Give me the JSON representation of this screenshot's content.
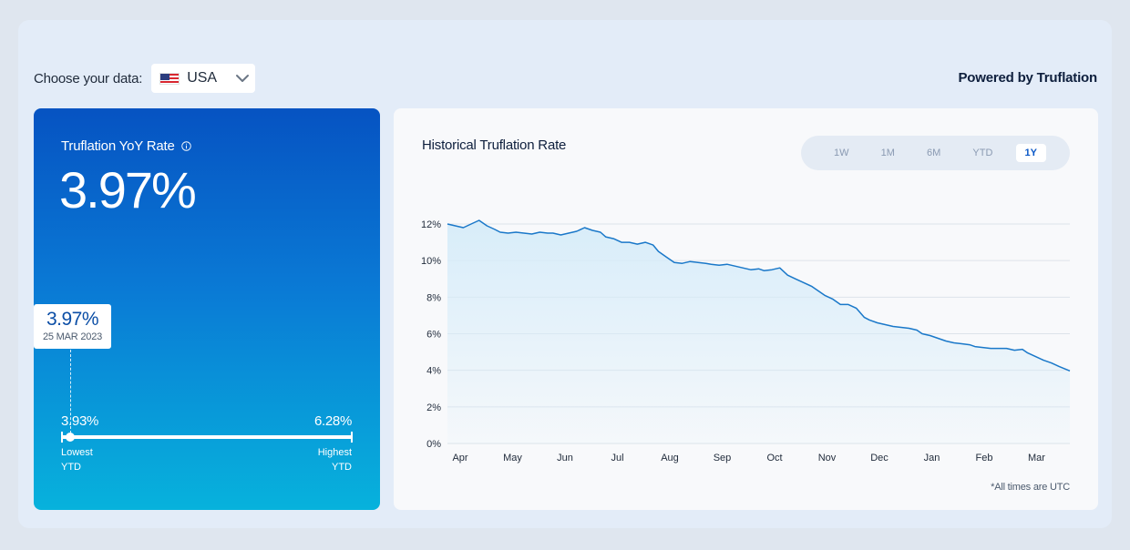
{
  "header": {
    "choose_label": "Choose your data:",
    "country": "USA",
    "country_flag_icon": "us-flag-icon",
    "powered_by": "Powered by Truflation"
  },
  "rate_card": {
    "title": "Truflation YoY Rate",
    "value": "3.97%",
    "tooltip_value": "3.97%",
    "tooltip_date": "25 MAR 2023",
    "range": {
      "low_value": "3.93%",
      "high_value": "6.28%",
      "low_label_1": "Lowest",
      "low_label_2": "YTD",
      "high_label_1": "Highest",
      "high_label_2": "YTD",
      "current_position": 0.017
    }
  },
  "chart": {
    "title": "Historical Truflation Rate",
    "range_tabs": [
      "1W",
      "1M",
      "6M",
      "YTD",
      "1Y"
    ],
    "active_tab": "1Y",
    "footnote": "*All times are UTC"
  },
  "colors": {
    "line": "#1a78c9",
    "area_top": "#d6ecf9",
    "card_top": "#0653c2",
    "card_bottom": "#07b2dc",
    "grid": "#dde3ea"
  },
  "chart_data": {
    "type": "area",
    "x_ticks": [
      "Apr",
      "May",
      "Jun",
      "Jul",
      "Aug",
      "Sep",
      "Oct",
      "Nov",
      "Dec",
      "Jan",
      "Feb",
      "Mar"
    ],
    "y_ticks": [
      "0%",
      "2%",
      "4%",
      "6%",
      "8%",
      "10%",
      "12%"
    ],
    "ylim": [
      0,
      12
    ],
    "grid": true,
    "series": [
      {
        "x": [
          0.0,
          0.15,
          0.3,
          0.45,
          0.6,
          0.75,
          0.9,
          1.0,
          1.15,
          1.3,
          1.45,
          1.6,
          1.75,
          1.9,
          2.0,
          2.15,
          2.3,
          2.45,
          2.6,
          2.75,
          2.9,
          3.0,
          3.15,
          3.3,
          3.45,
          3.6,
          3.75,
          3.9,
          4.0,
          4.15,
          4.3,
          4.45,
          4.6,
          4.75,
          4.9,
          5.0,
          5.15,
          5.3,
          5.45,
          5.6,
          5.75,
          5.9,
          6.0,
          6.15,
          6.3,
          6.45,
          6.6,
          6.75,
          6.9,
          7.0,
          7.15,
          7.3,
          7.45,
          7.6,
          7.75,
          7.9,
          8.0,
          8.15,
          8.3,
          8.45,
          8.6,
          8.75,
          8.9,
          9.0,
          9.15,
          9.3,
          9.45,
          9.6,
          9.75,
          9.9,
          10.0,
          10.15,
          10.3,
          10.45,
          10.6,
          10.75,
          10.9,
          11.0,
          11.15,
          11.3,
          11.45,
          11.6,
          11.8
        ],
        "values": [
          12.0,
          11.9,
          11.8,
          12.0,
          12.2,
          11.9,
          11.7,
          11.55,
          11.5,
          11.55,
          11.5,
          11.45,
          11.55,
          11.5,
          11.5,
          11.4,
          11.5,
          11.6,
          11.8,
          11.65,
          11.55,
          11.3,
          11.2,
          11.0,
          11.0,
          10.9,
          11.0,
          10.85,
          10.5,
          10.2,
          9.9,
          9.85,
          9.95,
          9.9,
          9.85,
          9.8,
          9.75,
          9.8,
          9.7,
          9.6,
          9.5,
          9.55,
          9.45,
          9.5,
          9.6,
          9.2,
          9.0,
          8.8,
          8.6,
          8.4,
          8.1,
          7.9,
          7.6,
          7.6,
          7.4,
          6.9,
          6.75,
          6.6,
          6.5,
          6.4,
          6.35,
          6.3,
          6.2,
          6.0,
          5.9,
          5.75,
          5.6,
          5.5,
          5.45,
          5.4,
          5.3,
          5.25,
          5.2,
          5.2,
          5.2,
          5.1,
          5.15,
          4.95,
          4.75,
          4.55,
          4.4,
          4.2,
          3.97
        ]
      }
    ]
  }
}
